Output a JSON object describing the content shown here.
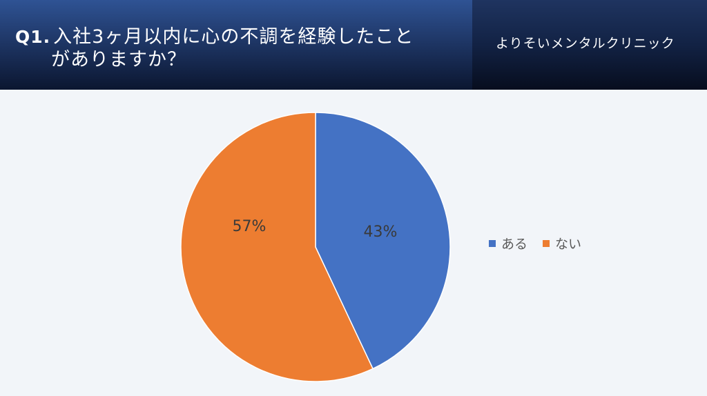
{
  "header": {
    "title_prefix": "Q1.",
    "title_line1": "入社3ヶ月以内に心の不調を経験したこと",
    "title_line2": "がありますか？",
    "clinic_name": "よりそいメンタルクリニック"
  },
  "colors": {
    "yes": "#4472c4",
    "no": "#ed7d31"
  },
  "chart_data": {
    "type": "pie",
    "title": "",
    "categories": [
      "ある",
      "ない"
    ],
    "values": [
      43,
      57
    ],
    "labels": [
      "43%",
      "57%"
    ],
    "legend_position": "right",
    "start_angle_deg": 0,
    "direction": "clockwise"
  }
}
